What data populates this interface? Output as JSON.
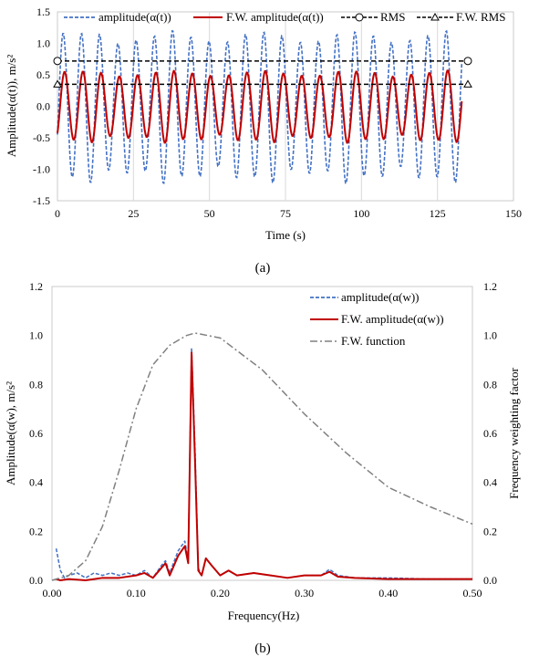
{
  "colors": {
    "amplitude": "#4472c4",
    "fw_amplitude": "#c00000",
    "rms": "#000000",
    "fw_rms": "#000000",
    "fw_function": "#808080",
    "grid": "#d9d9d9"
  },
  "chart_data": [
    {
      "type": "line",
      "caption": "(a)",
      "xlabel": "Time (s)",
      "ylabel": "Amplitude(α(t)),  m/s²",
      "xlim": [
        0,
        150
      ],
      "ylim": [
        -1.5,
        1.5
      ],
      "xticks": [
        0,
        25,
        50,
        75,
        100,
        125,
        150
      ],
      "yticks": [
        -1.5,
        -1.0,
        -0.5,
        0.0,
        0.5,
        1.0,
        1.5
      ],
      "xtick_labels": [
        "0",
        "25",
        "50",
        "75",
        "100",
        "125",
        "150"
      ],
      "ytick_labels": [
        "-1.5",
        "-1.0",
        "-0.5",
        "0.0",
        "0.5",
        "1.0",
        "1.5"
      ],
      "grid": "vertical",
      "legend_position": "top",
      "signal": {
        "duration_s": 133,
        "period_s": 6.0,
        "amplitude_peak": 1.1,
        "fw_amplitude_peak": 0.52
      },
      "series": [
        {
          "name": "amplitude(α(t))",
          "style": "dashed",
          "x": [
            0,
            2,
            5,
            8,
            11,
            14,
            17,
            20,
            23,
            26,
            29,
            32,
            35,
            38,
            41,
            44,
            47,
            50,
            53,
            56,
            59,
            62,
            65,
            68,
            71,
            74,
            77,
            80,
            83,
            86,
            89,
            92,
            95,
            98,
            101,
            104,
            107,
            110,
            113,
            116,
            119,
            122,
            125,
            128,
            131,
            133
          ],
          "y": [
            -0.45,
            0.9,
            -0.85,
            1.15,
            -1.05,
            1.1,
            -0.9,
            1.15,
            -1.0,
            1.1,
            -1.05,
            1.1,
            -0.95,
            1.15,
            -1.0,
            1.2,
            -1.05,
            1.1,
            -0.95,
            1.1,
            -1.0,
            1.15,
            -0.95,
            1.05,
            -1.0,
            1.1,
            -0.95,
            1.05,
            -1.0,
            1.1,
            -0.95,
            1.05,
            -1.0,
            1.1,
            -0.95,
            1.05,
            -1.0,
            1.05,
            -0.95,
            1.05,
            -0.95,
            1.0,
            -0.9,
            1.05,
            -0.9,
            1.0
          ]
        },
        {
          "name": "F.W. amplitude(α(t))",
          "style": "solid",
          "x": [
            0,
            2,
            5,
            8,
            11,
            14,
            17,
            20,
            23,
            26,
            29,
            32,
            35,
            38,
            41,
            44,
            47,
            50,
            53,
            56,
            59,
            62,
            65,
            68,
            71,
            74,
            77,
            80,
            83,
            86,
            89,
            92,
            95,
            98,
            101,
            104,
            107,
            110,
            113,
            116,
            119,
            122,
            125,
            128,
            131,
            134
          ],
          "y": [
            -0.2,
            0.35,
            -0.5,
            0.55,
            -0.5,
            0.55,
            -0.5,
            0.55,
            -0.5,
            0.55,
            -0.5,
            0.55,
            -0.5,
            0.55,
            -0.5,
            0.55,
            -0.5,
            0.55,
            -0.5,
            0.55,
            -0.5,
            0.55,
            -0.5,
            0.55,
            -0.5,
            0.55,
            -0.5,
            0.55,
            -0.5,
            0.55,
            -0.5,
            0.55,
            -0.5,
            0.55,
            -0.5,
            0.55,
            -0.5,
            0.55,
            -0.5,
            0.55,
            -0.5,
            0.55,
            -0.5,
            0.55,
            -0.5,
            0.1
          ]
        },
        {
          "name": "RMS",
          "style": "dashed-circle",
          "x": [
            0,
            135
          ],
          "y": [
            0.72,
            0.72
          ]
        },
        {
          "name": "F.W. RMS",
          "style": "dashed-triangle",
          "x": [
            0,
            135
          ],
          "y": [
            0.35,
            0.35
          ]
        }
      ]
    },
    {
      "type": "line",
      "caption": "(b)",
      "xlabel": "Frequency(Hz)",
      "ylabel": "Amplitude(α(w), m/s²",
      "y2label": "Frequency weighting factor",
      "xlim": [
        0.0,
        0.5
      ],
      "ylim": [
        0.0,
        1.2
      ],
      "y2lim": [
        0.0,
        1.2
      ],
      "xticks": [
        0.0,
        0.1,
        0.2,
        0.3,
        0.4,
        0.5
      ],
      "yticks": [
        0.0,
        0.2,
        0.4,
        0.6,
        0.8,
        1.0,
        1.2
      ],
      "xtick_labels": [
        "0.00",
        "0.10",
        "0.20",
        "0.30",
        "0.40",
        "0.50"
      ],
      "ytick_labels": [
        "0.0",
        "0.2",
        "0.4",
        "0.6",
        "0.8",
        "1.0",
        "1.2"
      ],
      "y2tick_labels": [
        "0.0",
        "0.2",
        "0.4",
        "0.6",
        "0.8",
        "1.0",
        "1.2"
      ],
      "grid": "none",
      "legend_position": "top-right",
      "series": [
        {
          "name": "amplitude(α(w))",
          "style": "dashed",
          "x": [
            0.005,
            0.01,
            0.015,
            0.02,
            0.03,
            0.04,
            0.05,
            0.06,
            0.07,
            0.08,
            0.09,
            0.1,
            0.11,
            0.12,
            0.13,
            0.135,
            0.14,
            0.15,
            0.158,
            0.162,
            0.166,
            0.17,
            0.174,
            0.178,
            0.183,
            0.19,
            0.2,
            0.21,
            0.22,
            0.24,
            0.26,
            0.28,
            0.3,
            0.32,
            0.33,
            0.34,
            0.36,
            0.4,
            0.45,
            0.5
          ],
          "y": [
            0.13,
            0.04,
            0.01,
            0.02,
            0.03,
            0.01,
            0.03,
            0.02,
            0.03,
            0.02,
            0.03,
            0.02,
            0.04,
            0.01,
            0.06,
            0.08,
            0.03,
            0.12,
            0.16,
            0.08,
            0.95,
            0.55,
            0.05,
            0.02,
            0.09,
            0.06,
            0.02,
            0.04,
            0.02,
            0.03,
            0.02,
            0.01,
            0.02,
            0.02,
            0.045,
            0.02,
            0.01,
            0.01,
            0.005,
            0.005
          ]
        },
        {
          "name": "F.W. amplitude(α(w))",
          "style": "solid",
          "x": [
            0.005,
            0.01,
            0.02,
            0.04,
            0.06,
            0.08,
            0.1,
            0.11,
            0.12,
            0.13,
            0.135,
            0.14,
            0.15,
            0.158,
            0.162,
            0.166,
            0.17,
            0.174,
            0.178,
            0.183,
            0.19,
            0.2,
            0.21,
            0.22,
            0.24,
            0.26,
            0.28,
            0.3,
            0.32,
            0.33,
            0.34,
            0.36,
            0.4,
            0.45,
            0.5
          ],
          "y": [
            0.005,
            0.0,
            0.005,
            0.0,
            0.01,
            0.01,
            0.02,
            0.03,
            0.01,
            0.05,
            0.07,
            0.02,
            0.1,
            0.14,
            0.07,
            0.93,
            0.5,
            0.04,
            0.02,
            0.09,
            0.06,
            0.02,
            0.04,
            0.02,
            0.03,
            0.02,
            0.01,
            0.02,
            0.02,
            0.035,
            0.015,
            0.01,
            0.005,
            0.005,
            0.005
          ]
        },
        {
          "name": "F.W. function",
          "style": "dashdot",
          "axis": "y2",
          "x": [
            0.0,
            0.02,
            0.04,
            0.06,
            0.08,
            0.1,
            0.12,
            0.14,
            0.16,
            0.17,
            0.2,
            0.25,
            0.3,
            0.35,
            0.4,
            0.45,
            0.5
          ],
          "y": [
            0.0,
            0.02,
            0.08,
            0.22,
            0.45,
            0.7,
            0.88,
            0.96,
            1.0,
            1.01,
            0.99,
            0.86,
            0.68,
            0.52,
            0.38,
            0.3,
            0.23
          ]
        }
      ]
    }
  ]
}
